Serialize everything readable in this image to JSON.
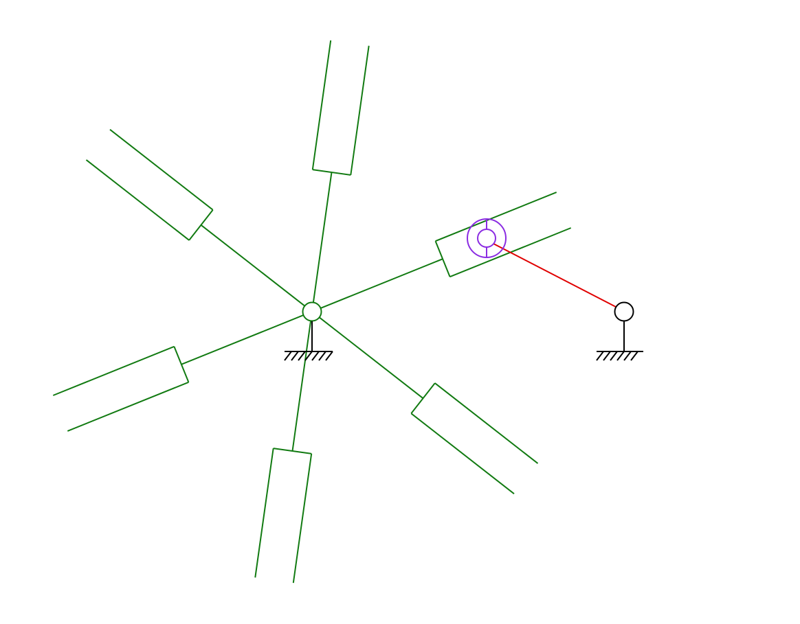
{
  "diagram": {
    "kind": "geneva-mechanism",
    "slot_count": 6,
    "colors": {
      "geneva_wheel": "#117a11",
      "drive_crank": "#e00000",
      "drive_pin": "#8a2be2",
      "frame": "#000000",
      "background": "#ffffff"
    },
    "parts": {
      "geneva_wheel": {
        "slots": 6,
        "pivot": "ground-pivot"
      },
      "drive_crank": {
        "pivot": "ground-pivot"
      },
      "drive_pin": {
        "engaged_slot": 1
      }
    }
  }
}
